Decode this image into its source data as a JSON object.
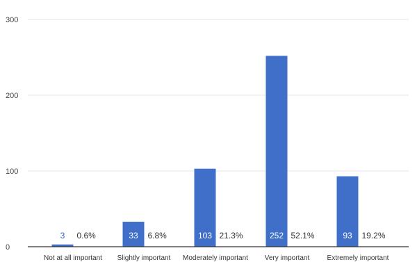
{
  "chart_data": {
    "type": "bar",
    "categories": [
      "Not at all important",
      "Slightly important",
      "Moderately important",
      "Very important",
      "Extremely important"
    ],
    "values": [
      3,
      33,
      103,
      252,
      93
    ],
    "value_labels": [
      "3",
      "33",
      "103",
      "252",
      "93"
    ],
    "percent_labels": [
      "0.6%",
      "6.8%",
      "21.3%",
      "52.1%",
      "19.2%"
    ],
    "yticks": [
      0,
      100,
      200,
      300
    ],
    "ylim": [
      0,
      300
    ],
    "grid": true,
    "bar_color": "#3f6fc8",
    "gridline_color": "#e6e6e6",
    "axis_color": "#333333"
  }
}
